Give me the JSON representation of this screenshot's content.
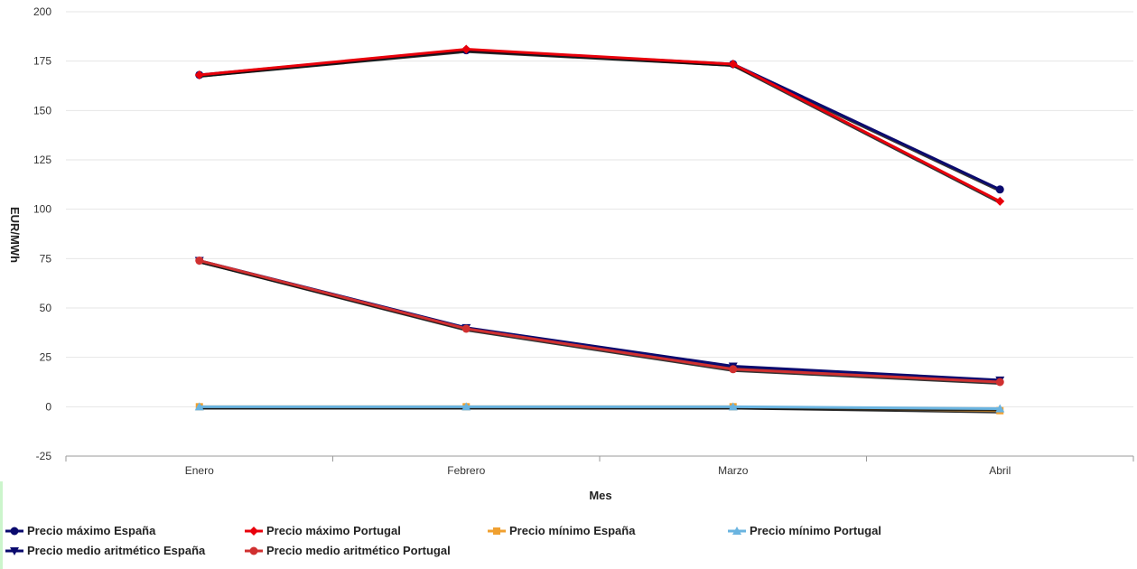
{
  "chart_data": {
    "type": "line",
    "categories": [
      "Enero",
      "Febrero",
      "Marzo",
      "Abril"
    ],
    "xlabel": "Mes",
    "ylabel": "EUR/MWh",
    "ylim": [
      -25,
      200
    ],
    "yticks": [
      -25,
      0,
      25,
      50,
      75,
      100,
      125,
      150,
      175,
      200
    ],
    "grid": true,
    "legend_position": "bottom-left",
    "series": [
      {
        "name": "Precio máximo España",
        "color": "#0a0a6e",
        "marker": "circle",
        "values": [
          168,
          180.5,
          173.5,
          110
        ]
      },
      {
        "name": "Precio máximo Portugal",
        "color": "#e8000b",
        "marker": "diamond",
        "values": [
          168,
          181,
          173.5,
          104
        ]
      },
      {
        "name": "Precio mínimo España",
        "color": "#f0a030",
        "marker": "square",
        "values": [
          0,
          0,
          0,
          -2
        ]
      },
      {
        "name": "Precio mínimo Portugal",
        "color": "#6ab4e0",
        "marker": "triangle",
        "values": [
          0,
          0,
          0,
          -1
        ]
      },
      {
        "name": "Precio medio aritmético España",
        "color": "#0a0a6e",
        "marker": "triangle-down",
        "values": [
          74,
          40,
          20.5,
          13.5
        ]
      },
      {
        "name": "Precio medio aritmético Portugal",
        "color": "#d03030",
        "marker": "circle",
        "values": [
          74,
          39.5,
          19,
          12.5
        ]
      }
    ]
  },
  "legend": {
    "items": [
      {
        "label": "Precio máximo España"
      },
      {
        "label": "Precio máximo Portugal"
      },
      {
        "label": "Precio mínimo España"
      },
      {
        "label": "Precio mínimo Portugal"
      },
      {
        "label": "Precio medio aritmético España"
      },
      {
        "label": "Precio medio aritmético Portugal"
      }
    ]
  }
}
